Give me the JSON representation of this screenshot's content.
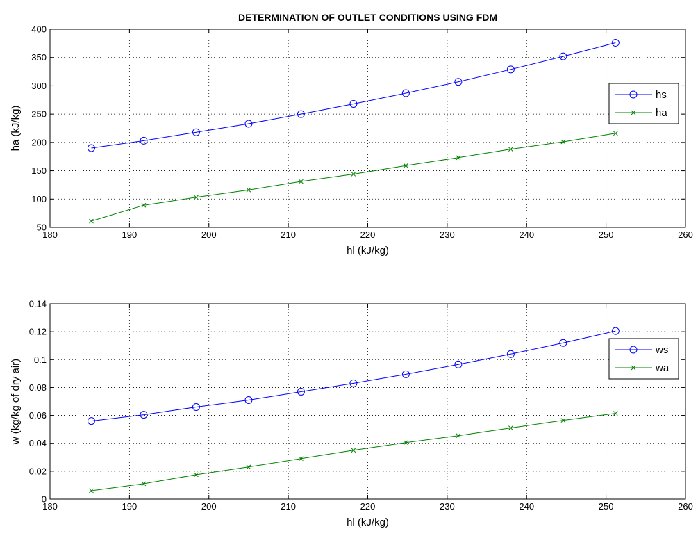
{
  "chart_data": [
    {
      "type": "line",
      "title": "DETERMINATION OF OUTLET CONDITIONS USING FDM",
      "xlabel": "hl (kJ/kg)",
      "ylabel": "ha (kJ/kg)",
      "xlim": [
        180,
        260
      ],
      "ylim": [
        50,
        400
      ],
      "xticks": [
        180,
        190,
        200,
        210,
        220,
        230,
        240,
        250,
        260
      ],
      "yticks": [
        50,
        100,
        150,
        200,
        250,
        300,
        350,
        400
      ],
      "x": [
        185.2,
        191.8,
        198.4,
        205.0,
        211.6,
        218.2,
        224.8,
        231.4,
        238.0,
        244.6,
        251.2
      ],
      "grid": true,
      "legend_position": "right",
      "series": [
        {
          "name": "hs",
          "color": "#0000ff",
          "marker": "circle",
          "values": [
            190,
            203,
            218,
            233,
            250,
            268,
            287,
            307,
            329,
            352,
            376
          ]
        },
        {
          "name": "ha",
          "color": "#008000",
          "marker": "x",
          "values": [
            61,
            89,
            103,
            116,
            131,
            144,
            159,
            173,
            188,
            201,
            216
          ]
        }
      ]
    },
    {
      "type": "line",
      "title": "",
      "xlabel": "hl (kJ/kg)",
      "ylabel": "w (kg/kg of dry air)",
      "xlim": [
        180,
        260
      ],
      "ylim": [
        0,
        0.14
      ],
      "xticks": [
        180,
        190,
        200,
        210,
        220,
        230,
        240,
        250,
        260
      ],
      "yticks": [
        0,
        0.02,
        0.04,
        0.06,
        0.08,
        0.1,
        0.12,
        0.14
      ],
      "x": [
        185.2,
        191.8,
        198.4,
        205.0,
        211.6,
        218.2,
        224.8,
        231.4,
        238.0,
        244.6,
        251.2
      ],
      "grid": true,
      "legend_position": "right",
      "series": [
        {
          "name": "ws",
          "color": "#0000ff",
          "marker": "circle",
          "values": [
            0.056,
            0.0605,
            0.066,
            0.071,
            0.077,
            0.083,
            0.0895,
            0.0965,
            0.104,
            0.112,
            0.1205
          ]
        },
        {
          "name": "wa",
          "color": "#008000",
          "marker": "x",
          "values": [
            0.006,
            0.011,
            0.0175,
            0.023,
            0.029,
            0.035,
            0.0405,
            0.0455,
            0.051,
            0.0565,
            0.0615
          ]
        }
      ]
    }
  ]
}
